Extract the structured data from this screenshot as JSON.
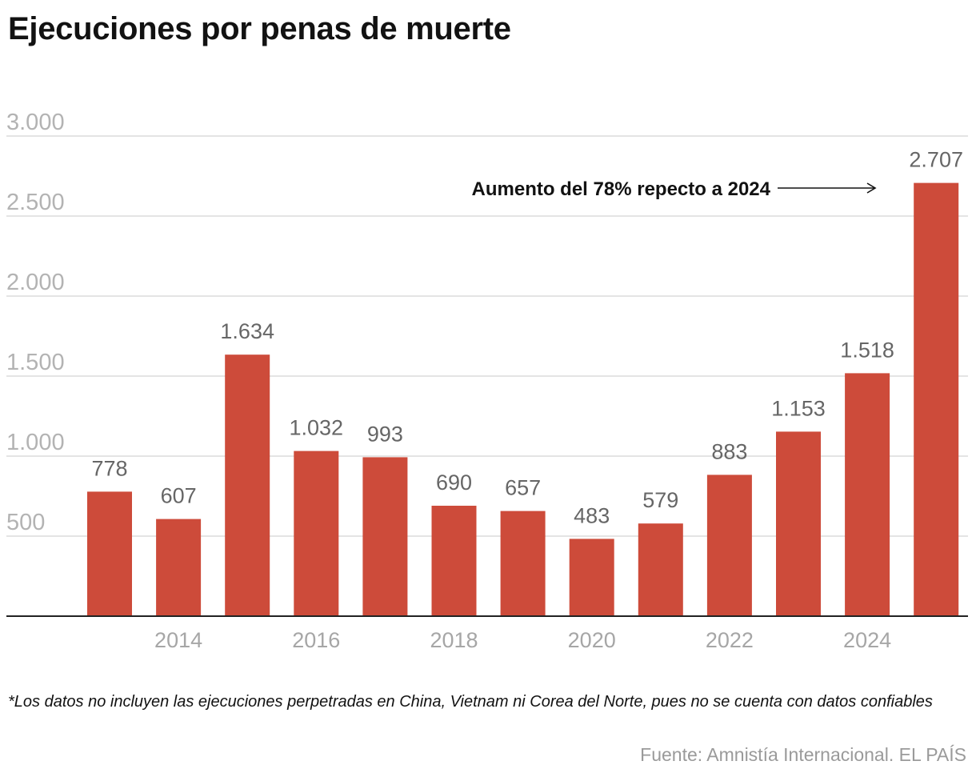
{
  "chart_data": {
    "type": "bar",
    "title": "Ejecuciones por penas de muerte",
    "categories": [
      "2013",
      "2014",
      "2015",
      "2016",
      "2017",
      "2018",
      "2019",
      "2020",
      "2021",
      "2022",
      "2023",
      "2024",
      "2025"
    ],
    "values": [
      778,
      607,
      1634,
      1032,
      993,
      690,
      657,
      483,
      579,
      883,
      1153,
      1518,
      2707
    ],
    "value_labels": [
      "778",
      "607",
      "1.634",
      "1.032",
      "993",
      "690",
      "657",
      "483",
      "579",
      "883",
      "1.153",
      "1.518",
      "2.707"
    ],
    "x_tick_labels": [
      "",
      "2014",
      "",
      "2016",
      "",
      "2018",
      "",
      "2020",
      "",
      "2022",
      "",
      "2024",
      ""
    ],
    "y_ticks": [
      500,
      1000,
      1500,
      2000,
      2500,
      3000
    ],
    "y_tick_labels": [
      "500",
      "1.000",
      "1.500",
      "2.000",
      "2.500",
      "3.000"
    ],
    "ylim": [
      0,
      3000
    ],
    "grid": true,
    "bar_color": "#cd4b3a",
    "annotation": {
      "text": "Aumento del 78% repecto a 2024",
      "target_category": "2025"
    }
  },
  "footnote": "*Los datos no incluyen las ejecuciones perpetradas en China, Vietnam ni Corea del Norte, pues no se cuenta con datos confiables",
  "source": "Fuente: Amnistía Internacional. EL PAÍS"
}
